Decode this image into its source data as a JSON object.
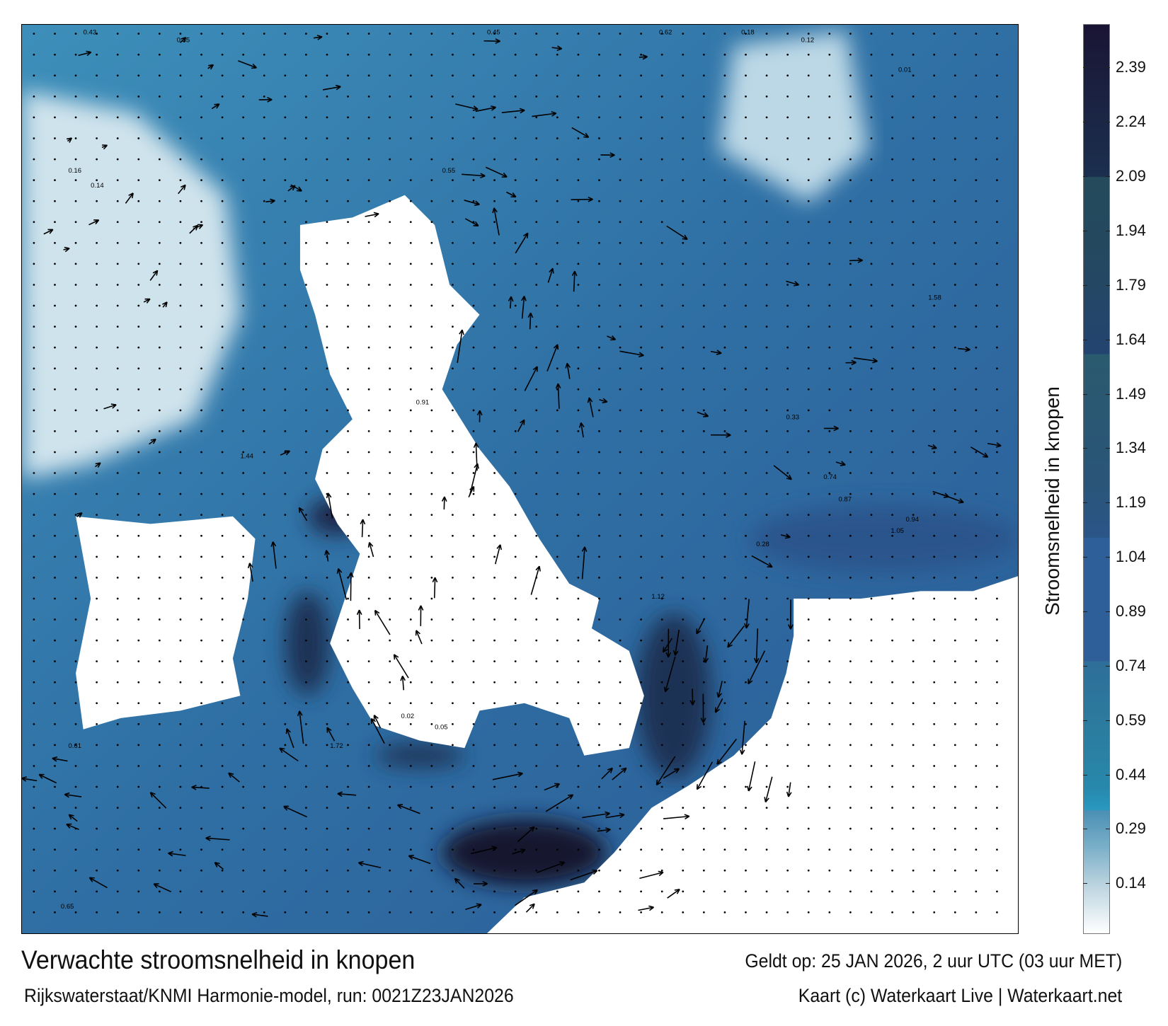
{
  "map": {
    "title": "Verwachte stroomsnelheid in knopen",
    "subtitle": "Rijkswaterstaat/KNMI Harmonie-model, run: 0021Z23JAN2026",
    "valid_time": "Geldt op: 25 JAN 2026, 2 uur UTC (03 uur MET)",
    "credit": "Kaart (c) Waterkaart Live | Waterkaart.net",
    "sample_speed_labels": [
      "0.43",
      "0.35",
      "0.45",
      "0.62",
      "0.18",
      "0.12",
      "0.01",
      "0.16",
      "0.14",
      "0.55",
      "0.91",
      "1.44",
      "1.72",
      "1.58",
      "0.87",
      "0.94",
      "1.05",
      "0.02",
      "0.61",
      "0.65",
      "1.12",
      "0.74",
      "0.33",
      "0.28",
      "0.05"
    ]
  },
  "colorbar": {
    "title": "Stroomsnelheid in knopen",
    "range": [
      0,
      2.51
    ],
    "ticks": [
      "2.39",
      "2.24",
      "2.09",
      "1.94",
      "1.79",
      "1.64",
      "1.49",
      "1.34",
      "1.19",
      "1.04",
      "0.89",
      "0.74",
      "0.59",
      "0.44",
      "0.29",
      "0.14"
    ],
    "colors": {
      "high": "#1a1434",
      "mid": "#2f5f98",
      "low": "#2a98bf",
      "zero": "#ffffff"
    }
  }
}
